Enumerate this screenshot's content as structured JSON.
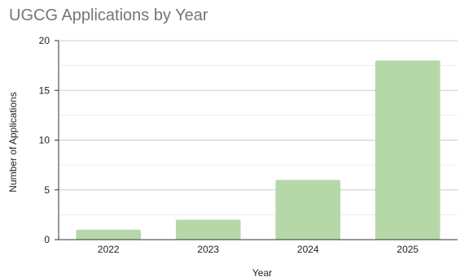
{
  "chart_data": {
    "type": "bar",
    "title": "UGCG Applications by Year",
    "xlabel": "Year",
    "ylabel": "Number of Applications",
    "categories": [
      "2022",
      "2023",
      "2024",
      "2025"
    ],
    "values": [
      1,
      2,
      6,
      18
    ],
    "ylim": [
      0,
      20
    ],
    "y_ticks": [
      0,
      5,
      10,
      15,
      20
    ],
    "minor_grid_step": 2.5,
    "grid": true,
    "legend": "none",
    "bar_color": "#b6d7a8",
    "major_grid_color": "#cccccc",
    "minor_grid_color": "#ececec"
  }
}
